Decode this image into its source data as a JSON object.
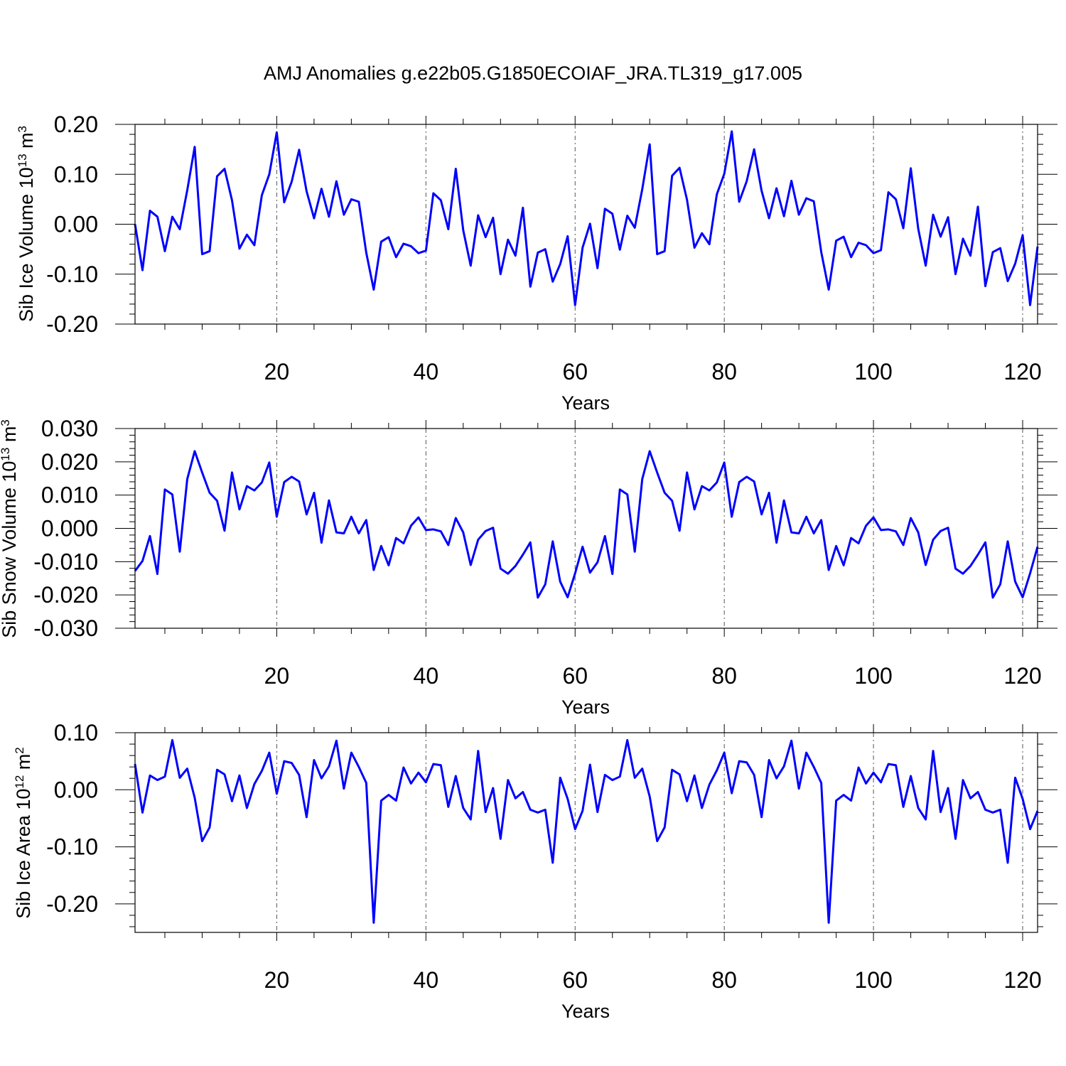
{
  "title": "AMJ Anomalies g.e22b05.G1850ECOIAF_JRA.TL319_g17.005",
  "colors": {
    "line": "#0000ff",
    "axis": "#000000",
    "grid": "#555555"
  },
  "chart_data": [
    {
      "type": "line",
      "name": "ice-volume",
      "ylabel_main": "Sib Ice Volume 10",
      "ylabel_sup": "13",
      "ylabel_unit": " m",
      "ylabel_unit_sup": "3",
      "xlabel": "Years",
      "xlim": [
        1,
        122
      ],
      "ylim": [
        -0.2,
        0.2
      ],
      "xticks": [
        20,
        40,
        60,
        80,
        100,
        120
      ],
      "xtick_labels": [
        "20",
        "40",
        "60",
        "80",
        "100",
        "120"
      ],
      "yticks": [
        -0.2,
        -0.1,
        0.0,
        0.1,
        0.2
      ],
      "ytick_labels": [
        "-0.20",
        "-0.10",
        "0.00",
        "0.10",
        "0.20"
      ],
      "grid_x": [
        20,
        40,
        60,
        80,
        100,
        120
      ],
      "series": [
        {
          "name": "Sib Ice Volume",
          "x_start": 1,
          "values": [
            0.0,
            -0.092,
            0.027,
            0.015,
            -0.054,
            0.015,
            -0.01,
            0.068,
            0.155,
            -0.06,
            -0.054,
            0.096,
            0.111,
            0.048,
            -0.049,
            -0.021,
            -0.042,
            0.058,
            0.1,
            0.184,
            0.044,
            0.085,
            0.149,
            0.066,
            0.012,
            0.071,
            0.015,
            0.086,
            0.019,
            0.05,
            0.045,
            -0.057,
            -0.131,
            -0.035,
            -0.026,
            -0.066,
            -0.039,
            -0.044,
            -0.058,
            -0.053,
            0.062,
            0.048,
            -0.01,
            0.111,
            -0.012,
            -0.083,
            0.018,
            -0.026,
            0.013,
            -0.1,
            -0.031,
            -0.063,
            0.033,
            -0.125,
            -0.057,
            -0.05,
            -0.115,
            -0.08,
            -0.024,
            -0.162,
            -0.047,
            0.001,
            -0.088,
            0.031,
            0.021,
            -0.051,
            0.017,
            -0.007,
            0.07,
            0.16,
            -0.06,
            -0.054,
            0.097,
            0.113,
            0.049,
            -0.047,
            -0.018,
            -0.04,
            0.06,
            0.101,
            0.186,
            0.045,
            0.086,
            0.15,
            0.067,
            0.012,
            0.072,
            0.016,
            0.087,
            0.019,
            0.052,
            0.046,
            -0.056,
            -0.131,
            -0.033,
            -0.025,
            -0.066,
            -0.037,
            -0.042,
            -0.058,
            -0.052,
            0.064,
            0.05,
            -0.008,
            0.112,
            -0.009,
            -0.083,
            0.019,
            -0.025,
            0.014,
            -0.1,
            -0.029,
            -0.063,
            0.035,
            -0.124,
            -0.056,
            -0.048,
            -0.114,
            -0.079,
            -0.022,
            -0.162,
            -0.045
          ]
        }
      ]
    },
    {
      "type": "line",
      "name": "snow-volume",
      "ylabel_main": "Sib Snow Volume 10",
      "ylabel_sup": "13",
      "ylabel_unit": " m",
      "ylabel_unit_sup": "3",
      "xlabel": "Years",
      "xlim": [
        1,
        122
      ],
      "ylim": [
        -0.03,
        0.03
      ],
      "xticks": [
        20,
        40,
        60,
        80,
        100,
        120
      ],
      "xtick_labels": [
        "20",
        "40",
        "60",
        "80",
        "100",
        "120"
      ],
      "yticks": [
        -0.03,
        -0.02,
        -0.01,
        0.0,
        0.01,
        0.02,
        0.03
      ],
      "ytick_labels": [
        "-0.030",
        "-0.020",
        "-0.010",
        "0.000",
        "0.010",
        "0.020",
        "0.030"
      ],
      "grid_x": [
        20,
        40,
        60,
        80,
        100,
        120
      ],
      "series": [
        {
          "name": "Sib Snow Volume",
          "x_start": 1,
          "values": [
            -0.0128,
            -0.0098,
            -0.0023,
            -0.0137,
            0.0117,
            0.0102,
            -0.007,
            0.0148,
            0.0232,
            0.0168,
            0.0107,
            0.0083,
            -0.0007,
            0.0168,
            0.0057,
            0.0127,
            0.0114,
            0.0138,
            0.0198,
            0.0035,
            0.0139,
            0.0155,
            0.0141,
            0.0042,
            0.0107,
            -0.0043,
            0.0084,
            -0.0012,
            -0.0015,
            0.0035,
            -0.0015,
            0.0025,
            -0.0125,
            -0.0053,
            -0.0111,
            -0.0029,
            -0.0045,
            0.0008,
            0.0033,
            -0.0005,
            -0.0003,
            -0.0009,
            -0.005,
            0.0031,
            -0.0012,
            -0.011,
            -0.0034,
            -0.0008,
            0.0002,
            -0.0121,
            -0.0136,
            -0.0113,
            -0.0079,
            -0.0042,
            -0.0208,
            -0.0168,
            -0.0039,
            -0.016,
            -0.0207,
            -0.0135,
            -0.0055,
            -0.0133,
            -0.0102,
            -0.0023,
            -0.0137,
            0.0117,
            0.0102,
            -0.007,
            0.0148,
            0.0232,
            0.0168,
            0.0107,
            0.0083,
            -0.0007,
            0.0168,
            0.0057,
            0.0127,
            0.0114,
            0.0138,
            0.0198,
            0.0035,
            0.0139,
            0.0155,
            0.0141,
            0.0042,
            0.0107,
            -0.0043,
            0.0084,
            -0.0012,
            -0.0015,
            0.0035,
            -0.0015,
            0.0025,
            -0.0125,
            -0.0053,
            -0.0111,
            -0.0029,
            -0.0045,
            0.0008,
            0.0033,
            -0.0005,
            -0.0003,
            -0.0009,
            -0.005,
            0.0031,
            -0.0012,
            -0.011,
            -0.0034,
            -0.0008,
            0.0002,
            -0.0121,
            -0.0136,
            -0.0113,
            -0.0079,
            -0.0042,
            -0.0208,
            -0.0168,
            -0.0039,
            -0.016,
            -0.0207,
            -0.0135,
            -0.0055
          ]
        }
      ]
    },
    {
      "type": "line",
      "name": "ice-area",
      "ylabel_main": "Sib Ice Area 10",
      "ylabel_sup": "12",
      "ylabel_unit": " m",
      "ylabel_unit_sup": "2",
      "xlabel": "Years",
      "xlim": [
        1,
        122
      ],
      "ylim": [
        -0.25,
        0.1
      ],
      "xticks": [
        20,
        40,
        60,
        80,
        100,
        120
      ],
      "xtick_labels": [
        "20",
        "40",
        "60",
        "80",
        "100",
        "120"
      ],
      "yticks": [
        -0.2,
        -0.1,
        0.0,
        0.1
      ],
      "ytick_labels": [
        "-0.20",
        "-0.10",
        "0.00",
        "0.10"
      ],
      "grid_x": [
        20,
        40,
        60,
        80,
        100,
        120
      ],
      "series": [
        {
          "name": "Sib Ice Area",
          "x_start": 1,
          "values": [
            0.045,
            -0.04,
            0.025,
            0.017,
            0.023,
            0.087,
            0.021,
            0.037,
            -0.014,
            -0.09,
            -0.066,
            0.035,
            0.027,
            -0.02,
            0.025,
            -0.032,
            0.01,
            0.033,
            0.065,
            -0.007,
            0.05,
            0.047,
            0.026,
            -0.048,
            0.052,
            0.02,
            0.041,
            0.086,
            0.002,
            0.065,
            0.04,
            0.012,
            -0.233,
            -0.019,
            -0.009,
            -0.019,
            0.039,
            0.011,
            0.03,
            0.013,
            0.045,
            0.043,
            -0.03,
            0.024,
            -0.032,
            -0.052,
            0.068,
            -0.039,
            0.003,
            -0.086,
            0.017,
            -0.015,
            -0.004,
            -0.035,
            -0.04,
            -0.035,
            -0.128,
            0.021,
            -0.016,
            -0.069,
            -0.037,
            0.044,
            -0.039,
            0.026,
            0.017,
            0.023,
            0.087,
            0.021,
            0.037,
            -0.012,
            -0.09,
            -0.066,
            0.035,
            0.027,
            -0.02,
            0.025,
            -0.032,
            0.009,
            0.034,
            0.065,
            -0.006,
            0.05,
            0.048,
            0.026,
            -0.048,
            0.052,
            0.02,
            0.041,
            0.086,
            0.002,
            0.065,
            0.04,
            0.012,
            -0.233,
            -0.019,
            -0.009,
            -0.019,
            0.039,
            0.011,
            0.03,
            0.013,
            0.045,
            0.043,
            -0.03,
            0.024,
            -0.032,
            -0.052,
            0.068,
            -0.039,
            0.003,
            -0.086,
            0.017,
            -0.015,
            -0.004,
            -0.035,
            -0.04,
            -0.035,
            -0.128,
            0.021,
            -0.016,
            -0.069,
            -0.037
          ]
        }
      ]
    }
  ]
}
